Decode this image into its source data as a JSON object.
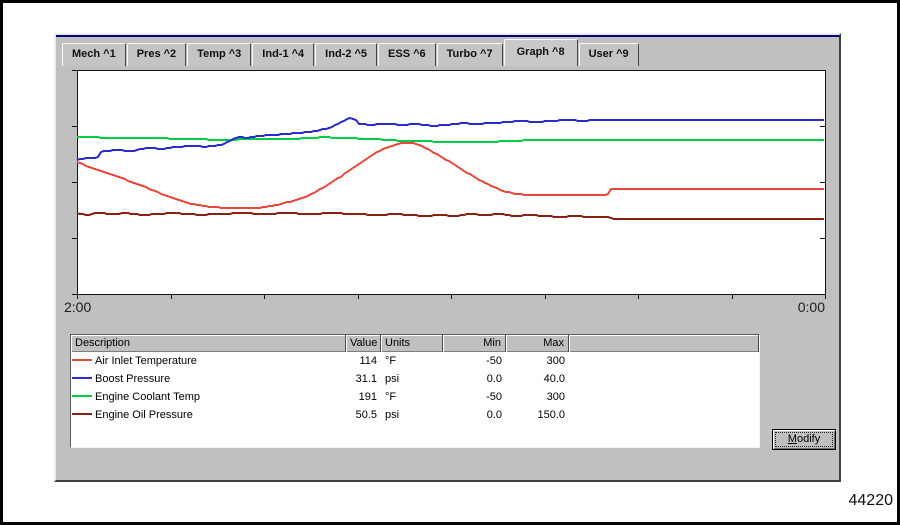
{
  "window": {
    "figure_number": "44220"
  },
  "panel": {
    "background": "#c0c0c0",
    "accent_line_color": "#000080"
  },
  "tabs": {
    "items": [
      {
        "label": "Mech ^1",
        "selected": false
      },
      {
        "label": "Pres ^2",
        "selected": false
      },
      {
        "label": "Temp ^3",
        "selected": false
      },
      {
        "label": "Ind-1 ^4",
        "selected": false
      },
      {
        "label": "Ind-2 ^5",
        "selected": false
      },
      {
        "label": "ESS ^6",
        "selected": false
      },
      {
        "label": "Turbo ^7",
        "selected": false
      },
      {
        "label": "Graph ^8",
        "selected": true
      },
      {
        "label": "User ^9",
        "selected": false
      }
    ]
  },
  "axis": {
    "left_time_label": "2:00",
    "right_time_label": "0:00"
  },
  "chart_data": {
    "type": "line",
    "title": "",
    "xlabel": "",
    "ylabel": "",
    "x_tick_labels": {
      "left": "2:00",
      "right": "0:00"
    },
    "x_ticks_count": 9,
    "y_ticks_count": 5,
    "grid": false,
    "legend_position": "table-below-chart",
    "note": "each series scaled to its own min/max over full plot height; x = time from 2:00 ago to 0:00 (now)",
    "series": [
      {
        "name": "Air Inlet Temperature",
        "units": "°F",
        "min": -50,
        "max": 300,
        "current": 114,
        "color": "#e8473a",
        "points": [
          [
            0,
            156
          ],
          [
            0.02,
            147
          ],
          [
            0.047,
            136
          ],
          [
            0.074,
            125
          ],
          [
            0.1,
            113
          ],
          [
            0.12,
            103
          ],
          [
            0.14,
            95
          ],
          [
            0.16,
            89
          ],
          [
            0.18,
            86
          ],
          [
            0.207,
            84
          ],
          [
            0.234,
            84
          ],
          [
            0.254,
            86
          ],
          [
            0.274,
            91
          ],
          [
            0.294,
            97
          ],
          [
            0.314,
            106
          ],
          [
            0.334,
            119
          ],
          [
            0.354,
            134
          ],
          [
            0.374,
            150
          ],
          [
            0.394,
            166
          ],
          [
            0.41,
            177
          ],
          [
            0.424,
            183
          ],
          [
            0.435,
            186
          ],
          [
            0.448,
            186
          ],
          [
            0.461,
            181
          ],
          [
            0.475,
            173
          ],
          [
            0.488,
            164
          ],
          [
            0.504,
            153
          ],
          [
            0.52,
            141
          ],
          [
            0.536,
            130
          ],
          [
            0.552,
            120
          ],
          [
            0.568,
            112
          ],
          [
            0.584,
            107
          ],
          [
            0.602,
            105
          ],
          [
            0.63,
            104
          ],
          [
            0.66,
            104
          ],
          [
            0.69,
            105
          ],
          [
            0.71,
            105
          ],
          [
            0.715,
            114
          ],
          [
            1,
            114
          ]
        ]
      },
      {
        "name": "Boost Pressure",
        "units": "psi",
        "min": 0,
        "max": 40,
        "current": 31.1,
        "color": "#2b2bcf",
        "points": [
          [
            0,
            23.9
          ],
          [
            0.013,
            24.3
          ],
          [
            0.027,
            24.3
          ],
          [
            0.033,
            25.5
          ],
          [
            0.053,
            25.7
          ],
          [
            0.074,
            25.5
          ],
          [
            0.094,
            26.1
          ],
          [
            0.114,
            25.9
          ],
          [
            0.134,
            26.3
          ],
          [
            0.154,
            26.4
          ],
          [
            0.174,
            26.3
          ],
          [
            0.194,
            26.6
          ],
          [
            0.214,
            28
          ],
          [
            0.227,
            27.9
          ],
          [
            0.241,
            28.2
          ],
          [
            0.261,
            28.4
          ],
          [
            0.281,
            28.6
          ],
          [
            0.301,
            28.8
          ],
          [
            0.321,
            29.1
          ],
          [
            0.341,
            29.8
          ],
          [
            0.354,
            30.7
          ],
          [
            0.365,
            31.4
          ],
          [
            0.372,
            31.3
          ],
          [
            0.377,
            30.4
          ],
          [
            0.394,
            30.2
          ],
          [
            0.414,
            30.4
          ],
          [
            0.435,
            30.2
          ],
          [
            0.455,
            30.4
          ],
          [
            0.475,
            30
          ],
          [
            0.495,
            30.2
          ],
          [
            0.515,
            30.5
          ],
          [
            0.535,
            30.4
          ],
          [
            0.555,
            30.5
          ],
          [
            0.575,
            30.7
          ],
          [
            0.595,
            30.9
          ],
          [
            0.615,
            30.7
          ],
          [
            0.635,
            30.9
          ],
          [
            0.655,
            31.1
          ],
          [
            0.675,
            30.9
          ],
          [
            0.695,
            31.1
          ],
          [
            0.715,
            31.1
          ],
          [
            1,
            31.1
          ]
        ]
      },
      {
        "name": "Engine Coolant Temp",
        "units": "°F",
        "min": -50,
        "max": 300,
        "current": 191,
        "color": "#00cc44",
        "points": [
          [
            0,
            195
          ],
          [
            0.06,
            194
          ],
          [
            0.12,
            193
          ],
          [
            0.19,
            191
          ],
          [
            0.25,
            192
          ],
          [
            0.3,
            193
          ],
          [
            0.33,
            195
          ],
          [
            0.4,
            192
          ],
          [
            0.44,
            189
          ],
          [
            0.49,
            188
          ],
          [
            0.54,
            187
          ],
          [
            0.6,
            190
          ],
          [
            0.65,
            191
          ],
          [
            1,
            191
          ]
        ]
      },
      {
        "name": "Engine Oil Pressure",
        "units": "psi",
        "min": 0,
        "max": 150,
        "current": 50.5,
        "color": "#8b2114",
        "points": [
          [
            0,
            54.2
          ],
          [
            0.013,
            52.9
          ],
          [
            0.027,
            54.2
          ],
          [
            0.047,
            53.6
          ],
          [
            0.067,
            54.2
          ],
          [
            0.087,
            52.9
          ],
          [
            0.107,
            53.6
          ],
          [
            0.127,
            54.2
          ],
          [
            0.147,
            53.6
          ],
          [
            0.167,
            52.9
          ],
          [
            0.187,
            53.6
          ],
          [
            0.227,
            54.2
          ],
          [
            0.247,
            53.6
          ],
          [
            0.287,
            54.2
          ],
          [
            0.307,
            53.6
          ],
          [
            0.347,
            54.2
          ],
          [
            0.367,
            53.6
          ],
          [
            0.407,
            52.9
          ],
          [
            0.427,
            53.6
          ],
          [
            0.447,
            52.9
          ],
          [
            0.467,
            52.2
          ],
          [
            0.487,
            52.9
          ],
          [
            0.507,
            52.2
          ],
          [
            0.527,
            53.6
          ],
          [
            0.547,
            52.9
          ],
          [
            0.567,
            53.6
          ],
          [
            0.587,
            52.2
          ],
          [
            0.607,
            52.9
          ],
          [
            0.627,
            52.2
          ],
          [
            0.647,
            51.6
          ],
          [
            0.667,
            52.2
          ],
          [
            0.687,
            51.6
          ],
          [
            0.71,
            51.6
          ],
          [
            0.716,
            50.5
          ],
          [
            1,
            50.5
          ]
        ]
      }
    ]
  },
  "table": {
    "columns": [
      "Description",
      "Value",
      "Units",
      "Min",
      "Max",
      ""
    ],
    "rows": [
      {
        "description": "Air Inlet Temperature",
        "value": "114",
        "units": "°F",
        "min": "-50",
        "max": "300",
        "color": "#e8473a"
      },
      {
        "description": "Boost Pressure",
        "value": "31.1",
        "units": "psi",
        "min": "0.0",
        "max": "40.0",
        "color": "#2b2bcf"
      },
      {
        "description": "Engine Coolant Temp",
        "value": "191",
        "units": "°F",
        "min": "-50",
        "max": "300",
        "color": "#00cc44"
      },
      {
        "description": "Engine Oil Pressure",
        "value": "50.5",
        "units": "psi",
        "min": "0.0",
        "max": "150.0",
        "color": "#8b2114"
      }
    ]
  },
  "buttons": {
    "modify_accel": "M",
    "modify_rest": "odify"
  }
}
